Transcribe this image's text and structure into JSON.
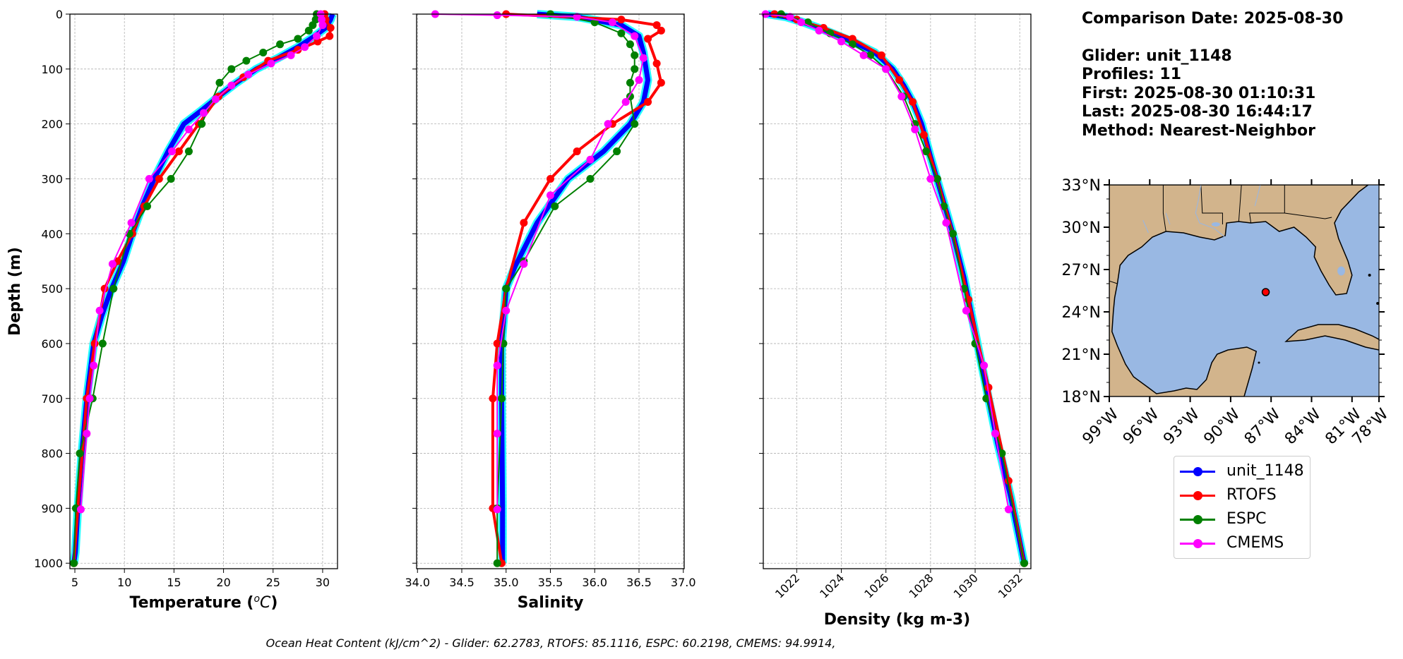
{
  "info": {
    "comparison_date": "Comparison Date: 2025-08-30",
    "glider": "Glider: unit_1148",
    "profiles": "Profiles: 11",
    "first": "First: 2025-08-30 01:10:31",
    "last": "Last: 2025-08-30 16:44:17",
    "method": "Method: Nearest-Neighbor"
  },
  "footer": "Ocean Heat Content (kJ/cm^2) - Glider: 62.2783,  RTOFS: 85.1116,  ESPC: 60.2198,  CMEMS: 94.9914,",
  "colors": {
    "unit_1148": "#0000ff",
    "unit_1148_spread": "#00ffff",
    "RTOFS": "#ff0000",
    "ESPC": "#008000",
    "CMEMS": "#ff00ff",
    "land": "#d2b48c",
    "ocean": "#99b8e3"
  },
  "legend": [
    {
      "label": "unit_1148",
      "color": "#0000ff"
    },
    {
      "label": "RTOFS",
      "color": "#ff0000"
    },
    {
      "label": "ESPC",
      "color": "#008000"
    },
    {
      "label": "CMEMS",
      "color": "#ff00ff"
    }
  ],
  "chart_data": [
    {
      "type": "line",
      "xlabel": "Temperature ($^oC$)",
      "ylabel": "Depth (m)",
      "xlim": [
        4.5,
        31.5
      ],
      "ylim": [
        1010,
        0
      ],
      "xticks": [
        5,
        10,
        15,
        20,
        25,
        30
      ],
      "yticks": [
        0,
        100,
        200,
        300,
        400,
        500,
        600,
        700,
        800,
        900,
        1000
      ],
      "grid": true,
      "series": [
        {
          "name": "unit_1148",
          "x": [
            31.0,
            30.8,
            30.3,
            29.2,
            27.5,
            25.5,
            23.3,
            21.3,
            19.5,
            17.8,
            16.0,
            14.4,
            13.0,
            11.8,
            10.8,
            9.9,
            8.7,
            7.7,
            6.9,
            6.2,
            5.7,
            5.3,
            5.05,
            4.9
          ],
          "y": [
            0,
            10,
            25,
            40,
            60,
            80,
            100,
            125,
            150,
            175,
            200,
            250,
            300,
            350,
            400,
            450,
            500,
            550,
            600,
            700,
            800,
            900,
            980,
            1000
          ]
        },
        {
          "name": "RTOFS",
          "x": [
            30.2,
            30.3,
            30.8,
            30.7,
            29.5,
            27.5,
            24.5,
            22.0,
            19.5,
            17.5,
            15.5,
            13.5,
            12.0,
            10.8,
            9.3,
            8.0,
            7.0,
            6.2,
            5.3,
            4.9
          ],
          "y": [
            0,
            10,
            25,
            40,
            50,
            65,
            85,
            115,
            150,
            200,
            250,
            300,
            350,
            400,
            450,
            500,
            600,
            700,
            900,
            1000
          ]
        },
        {
          "name": "ESPC",
          "x": [
            29.4,
            29.3,
            29.0,
            28.6,
            27.5,
            25.7,
            24.0,
            22.3,
            20.8,
            19.6,
            17.8,
            16.5,
            14.7,
            12.3,
            10.5,
            8.9,
            7.8,
            6.8,
            5.5,
            5.1,
            4.9
          ],
          "y": [
            0,
            10,
            20,
            30,
            45,
            55,
            70,
            85,
            100,
            125,
            200,
            250,
            300,
            350,
            400,
            500,
            600,
            700,
            800,
            900,
            1000
          ]
        },
        {
          "name": "CMEMS",
          "x": [
            29.8,
            29.9,
            30.0,
            29.4,
            28.2,
            26.8,
            24.8,
            22.5,
            20.8,
            19.2,
            18.0,
            16.5,
            14.8,
            12.5,
            10.7,
            8.8,
            7.5,
            6.9,
            6.5,
            6.2,
            5.6
          ],
          "y": [
            0,
            10,
            20,
            40,
            60,
            75,
            90,
            110,
            130,
            155,
            180,
            210,
            250,
            300,
            380,
            455,
            540,
            640,
            700,
            764,
            902
          ]
        }
      ]
    },
    {
      "type": "line",
      "xlabel": "Salinity",
      "xlim": [
        33.99,
        37.01
      ],
      "ylim": [
        1010,
        0
      ],
      "xticks": [
        34.0,
        34.5,
        35.0,
        35.5,
        36.0,
        36.5,
        37.0
      ],
      "grid": true,
      "series": [
        {
          "name": "unit_1148",
          "x": [
            35.35,
            35.8,
            36.3,
            36.5,
            36.55,
            36.6,
            36.55,
            36.4,
            36.1,
            35.7,
            35.35,
            35.1,
            35.0,
            34.95,
            34.95,
            34.96,
            34.96
          ],
          "y": [
            0,
            5,
            20,
            40,
            70,
            120,
            160,
            200,
            250,
            300,
            380,
            460,
            500,
            600,
            700,
            900,
            1000
          ]
        },
        {
          "name": "RTOFS",
          "x": [
            35.0,
            36.3,
            36.7,
            36.75,
            36.6,
            36.7,
            36.75,
            36.6,
            36.2,
            35.8,
            35.5,
            35.2,
            35.0,
            34.9,
            34.85,
            34.85,
            34.95
          ],
          "y": [
            0,
            10,
            20,
            30,
            45,
            90,
            125,
            160,
            200,
            250,
            300,
            380,
            500,
            600,
            700,
            900,
            1000
          ]
        },
        {
          "name": "ESPC",
          "x": [
            35.5,
            36.0,
            36.3,
            36.4,
            36.45,
            36.45,
            36.4,
            36.4,
            36.45,
            36.25,
            35.95,
            35.55,
            35.2,
            35.0,
            34.97,
            34.95,
            34.9,
            34.9
          ],
          "y": [
            0,
            15,
            35,
            55,
            75,
            100,
            125,
            150,
            200,
            250,
            300,
            350,
            450,
            500,
            600,
            700,
            900,
            1000
          ]
        },
        {
          "name": "CMEMS",
          "x": [
            34.2,
            34.9,
            35.8,
            36.2,
            36.45,
            36.55,
            36.5,
            36.35,
            36.15,
            35.95,
            35.5,
            35.2,
            35.0,
            34.9,
            34.9,
            34.9
          ],
          "y": [
            0,
            2,
            5,
            15,
            40,
            80,
            120,
            160,
            200,
            265,
            330,
            455,
            540,
            640,
            764,
            902
          ]
        }
      ]
    },
    {
      "type": "line",
      "xlabel": "Density (kg m-3)",
      "xlim": [
        1020.5,
        1032.5
      ],
      "ylim": [
        1010,
        0
      ],
      "xticks": [
        1022,
        1024,
        1026,
        1028,
        1030,
        1032
      ],
      "grid": true,
      "series": [
        {
          "name": "unit_1148",
          "x": [
            1020.7,
            1021.5,
            1022.3,
            1023.3,
            1024.5,
            1025.5,
            1026.3,
            1026.8,
            1027.2,
            1027.6,
            1028.0,
            1028.5,
            1029.0,
            1029.5,
            1030.0,
            1030.5,
            1031.0,
            1031.6,
            1032.2
          ],
          "y": [
            0,
            5,
            15,
            30,
            50,
            70,
            100,
            130,
            160,
            200,
            260,
            330,
            400,
            480,
            580,
            680,
            780,
            880,
            1000
          ]
        },
        {
          "name": "RTOFS",
          "x": [
            1021.0,
            1022.0,
            1023.2,
            1024.5,
            1025.8,
            1026.6,
            1027.2,
            1027.7,
            1028.3,
            1029.0,
            1029.7,
            1030.6,
            1031.5,
            1032.2
          ],
          "y": [
            0,
            10,
            25,
            45,
            75,
            120,
            160,
            220,
            300,
            400,
            520,
            680,
            850,
            1000
          ]
        },
        {
          "name": "ESPC",
          "x": [
            1021.3,
            1022.5,
            1023.5,
            1024.5,
            1025.3,
            1026.0,
            1026.8,
            1027.3,
            1027.8,
            1028.3,
            1028.6,
            1029.0,
            1029.5,
            1030.0,
            1030.5,
            1031.2,
            1032.2
          ],
          "y": [
            0,
            15,
            35,
            55,
            75,
            100,
            150,
            200,
            250,
            300,
            350,
            400,
            500,
            600,
            700,
            800,
            1000
          ]
        },
        {
          "name": "CMEMS",
          "x": [
            1020.6,
            1021.7,
            1022.2,
            1023.0,
            1024.0,
            1025.0,
            1026.0,
            1026.7,
            1027.3,
            1028.0,
            1028.7,
            1029.6,
            1030.4,
            1030.9,
            1031.5
          ],
          "y": [
            0,
            5,
            15,
            30,
            50,
            75,
            100,
            150,
            210,
            300,
            380,
            540,
            640,
            764,
            902
          ]
        }
      ]
    }
  ],
  "map": {
    "lat_ticks": [
      "33°N",
      "30°N",
      "27°N",
      "24°N",
      "21°N",
      "18°N"
    ],
    "lon_ticks": [
      "99°W",
      "96°W",
      "93°W",
      "90°W",
      "87°W",
      "84°W",
      "81°W",
      "78°W"
    ],
    "marker": {
      "lon": -86.4,
      "lat": 25.4
    }
  }
}
